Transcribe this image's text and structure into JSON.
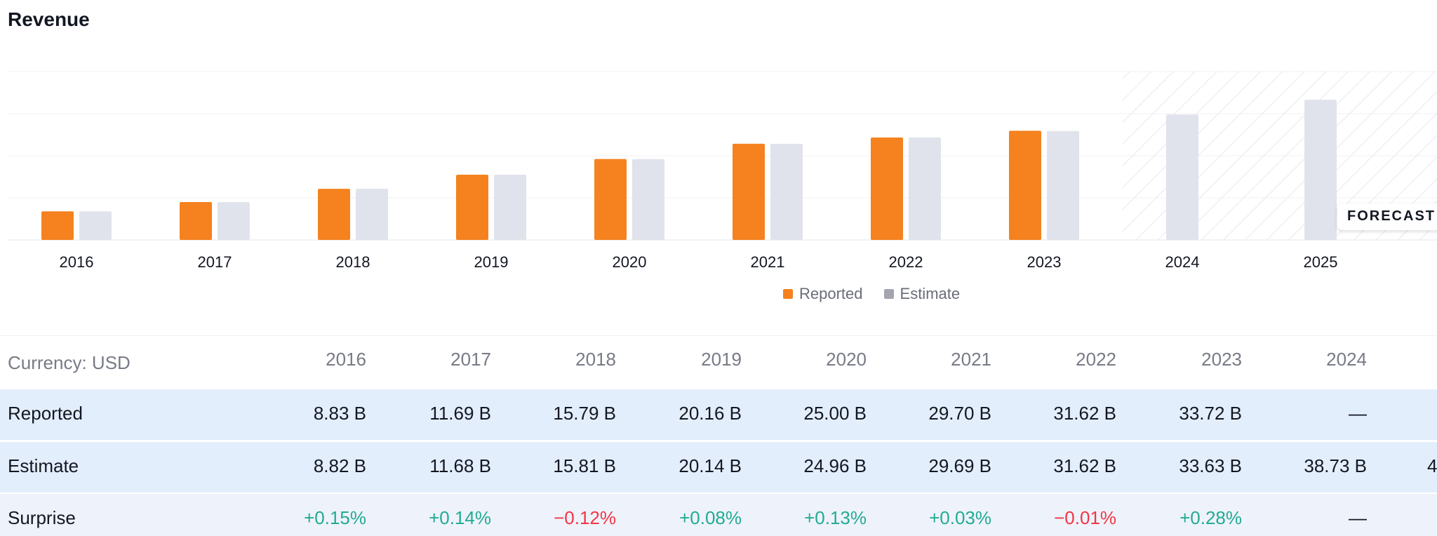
{
  "title": "Revenue",
  "chart_data": {
    "type": "bar",
    "categories": [
      "2016",
      "2017",
      "2018",
      "2019",
      "2020",
      "2021",
      "2022",
      "2023",
      "2024",
      "2025"
    ],
    "series": [
      {
        "name": "Reported",
        "values": [
          8.83,
          11.69,
          15.79,
          20.16,
          25.0,
          29.7,
          31.62,
          33.72,
          null,
          null
        ]
      },
      {
        "name": "Estimate",
        "values": [
          8.82,
          11.68,
          15.81,
          20.14,
          24.96,
          29.69,
          31.62,
          33.63,
          38.73,
          43.3
        ]
      }
    ],
    "forecast_start": "2024",
    "forecast_label": "FORECAST",
    "legend": [
      "Reported",
      "Estimate"
    ],
    "legend_position": "bottom-center",
    "grid": true,
    "colors": {
      "Reported": "#f5821f",
      "Estimate": "#e0e3eb",
      "legend_estimate": "#a3a6af"
    }
  },
  "table": {
    "currency_label": "Currency: USD",
    "years": [
      "2016",
      "2017",
      "2018",
      "2019",
      "2020",
      "2021",
      "2022",
      "2023",
      "2024"
    ],
    "rows": [
      {
        "label": "Reported",
        "values": [
          "8.83 B",
          "11.69 B",
          "15.79 B",
          "20.16 B",
          "25.00 B",
          "29.70 B",
          "31.62 B",
          "33.72 B",
          "—"
        ]
      },
      {
        "label": "Estimate",
        "values": [
          "8.82 B",
          "11.68 B",
          "15.81 B",
          "20.14 B",
          "24.96 B",
          "29.69 B",
          "31.62 B",
          "33.63 B",
          "38.73 B"
        ],
        "overflow": "4"
      },
      {
        "label": "Surprise",
        "values": [
          "+0.15%",
          "+0.14%",
          "−0.12%",
          "+0.08%",
          "+0.13%",
          "+0.03%",
          "−0.01%",
          "+0.28%",
          "—"
        ]
      }
    ]
  },
  "colors": {
    "positive": "#22ab94",
    "negative": "#f23645",
    "row_bg": "#e3eefc"
  }
}
